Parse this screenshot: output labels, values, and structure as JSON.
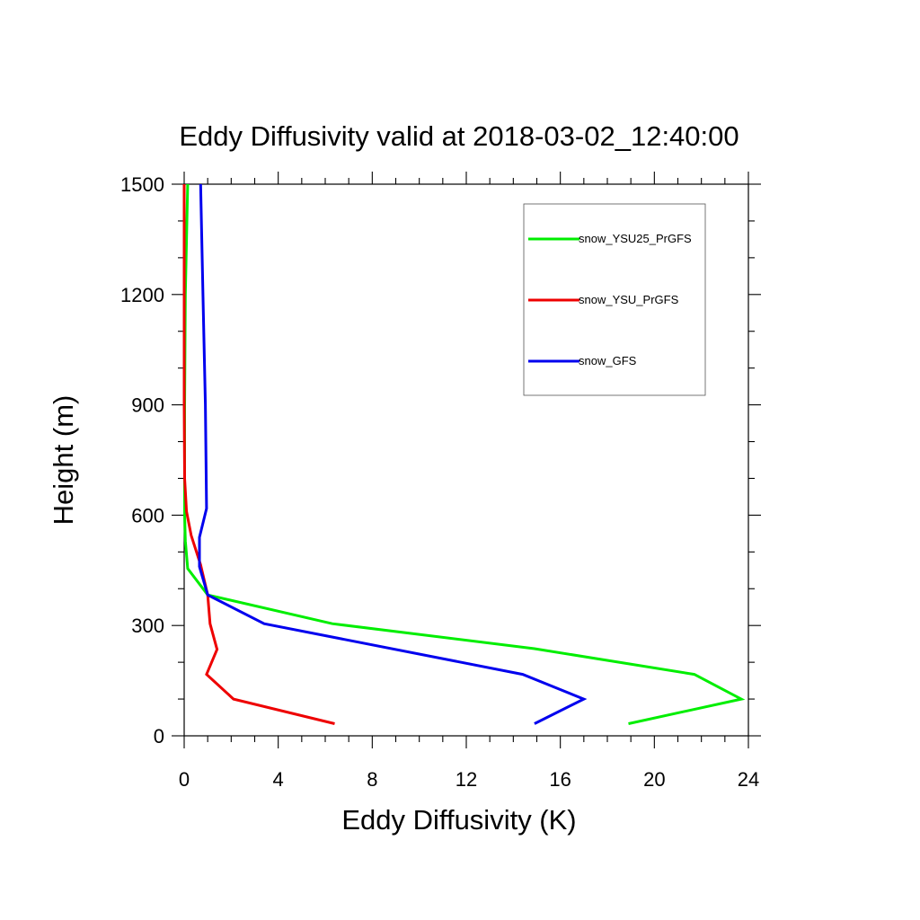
{
  "chart_data": {
    "type": "line",
    "title": "Eddy Diffusivity valid at 2018-03-02_12:40:00",
    "xlabel": "Eddy Diffusivity (K)",
    "ylabel": "Height (m)",
    "xlim": [
      0,
      24
    ],
    "ylim": [
      0,
      1500
    ],
    "xticks": [
      0,
      4,
      8,
      12,
      16,
      20,
      24
    ],
    "yticks": [
      0,
      300,
      600,
      900,
      1200,
      1500
    ],
    "grid": false,
    "legend_position": "top-right",
    "series": [
      {
        "name": "snow_YSU25_PrGFS",
        "color": "#00ee00",
        "points": [
          [
            18.9,
            33
          ],
          [
            23.7,
            100
          ],
          [
            21.7,
            167
          ],
          [
            14.9,
            237
          ],
          [
            6.3,
            305
          ],
          [
            1.0,
            383
          ],
          [
            0.15,
            455
          ],
          [
            0.05,
            530
          ],
          [
            0.02,
            600
          ],
          [
            0.02,
            900
          ],
          [
            0.05,
            1200
          ],
          [
            0.15,
            1500
          ]
        ]
      },
      {
        "name": "snow_YSU_PrGFS",
        "color": "#ee0000",
        "points": [
          [
            6.4,
            33
          ],
          [
            2.1,
            100
          ],
          [
            0.95,
            167
          ],
          [
            1.4,
            235
          ],
          [
            1.1,
            305
          ],
          [
            1.0,
            383
          ],
          [
            0.7,
            465
          ],
          [
            0.3,
            545
          ],
          [
            0.1,
            610
          ],
          [
            0.02,
            700
          ],
          [
            0.0,
            900
          ],
          [
            0.0,
            1200
          ],
          [
            0.0,
            1500
          ]
        ]
      },
      {
        "name": "snow_GFS",
        "color": "#0000ee",
        "points": [
          [
            14.9,
            33
          ],
          [
            17.0,
            100
          ],
          [
            14.4,
            167
          ],
          [
            3.4,
            305
          ],
          [
            1.0,
            383
          ],
          [
            0.65,
            460
          ],
          [
            0.65,
            540
          ],
          [
            0.95,
            618
          ],
          [
            0.9,
            900
          ],
          [
            0.8,
            1200
          ],
          [
            0.7,
            1500
          ]
        ]
      }
    ]
  }
}
